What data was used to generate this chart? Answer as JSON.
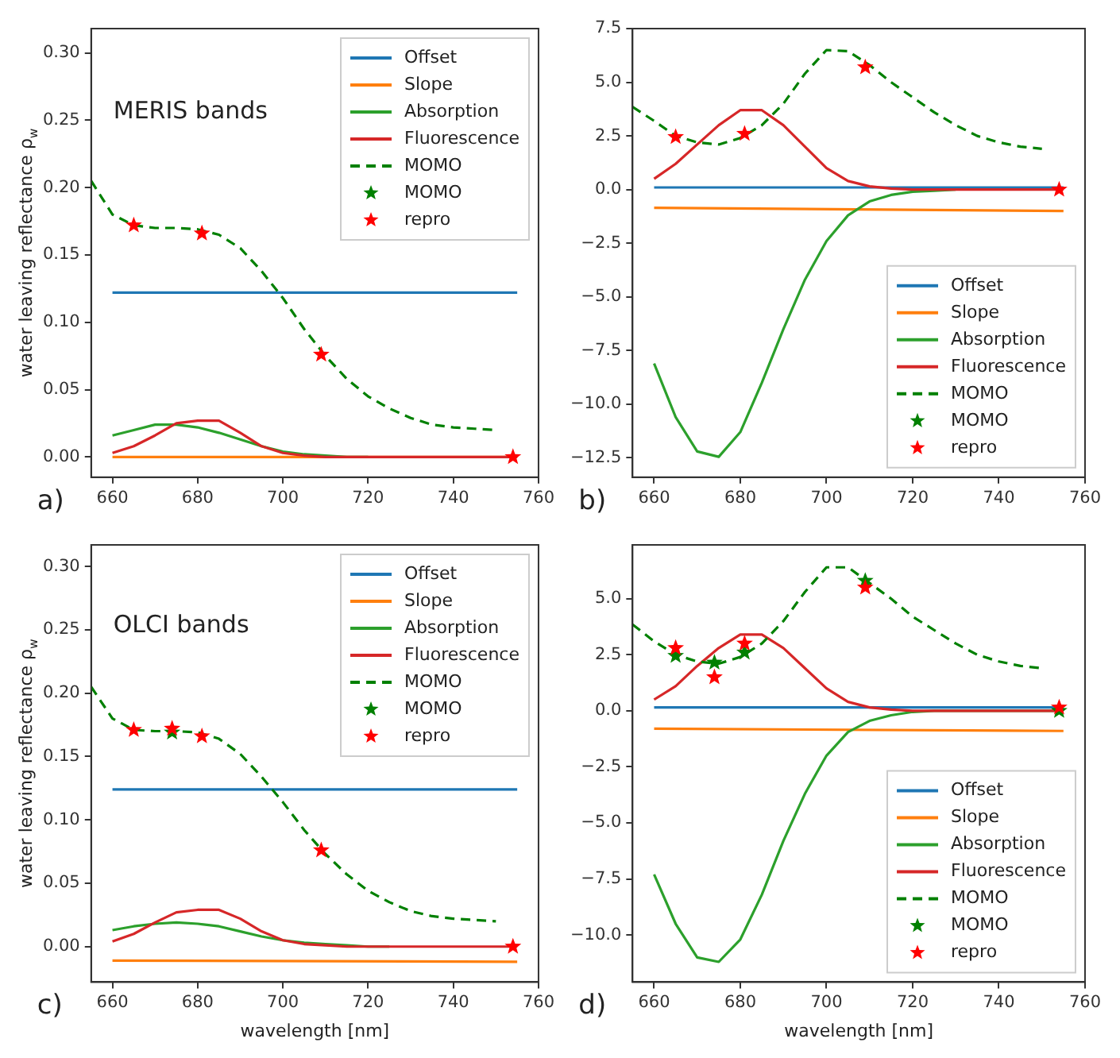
{
  "chart_data": [
    {
      "type": "line",
      "annotations": [
        "a)",
        "MERIS bands"
      ],
      "ylabel": "water leaving reflectance ρ$_{w}$",
      "xlim": [
        655,
        760
      ],
      "xticks": [
        660,
        680,
        700,
        720,
        740,
        760
      ],
      "ylim": [
        -0.015,
        0.318
      ],
      "yticks": [
        {
          "value": 0,
          "label": "0.00"
        },
        {
          "value": 0.05,
          "label": "0.05"
        },
        {
          "value": 0.1,
          "label": "0.10"
        },
        {
          "value": 0.15,
          "label": "0.15"
        },
        {
          "value": 0.2,
          "label": "0.20"
        },
        {
          "value": 0.25,
          "label": "0.25"
        },
        {
          "value": 0.3,
          "label": "0.30"
        }
      ],
      "legend": "top right",
      "series": [
        {
          "name": "Offset",
          "color": "#1f77b4",
          "x": [
            660,
            755
          ],
          "values": [
            0.122,
            0.122
          ]
        },
        {
          "name": "Slope",
          "color": "#ff7f0e",
          "x": [
            660,
            755
          ],
          "values": [
            0,
            0
          ]
        },
        {
          "name": "Absorption",
          "color": "#2ca02c",
          "x": [
            660,
            665,
            670,
            675,
            680,
            685,
            690,
            695,
            700,
            705,
            710,
            715,
            720
          ],
          "values": [
            0.016,
            0.02,
            0.024,
            0.024,
            0.022,
            0.018,
            0.013,
            0.008,
            0.004,
            0.002,
            0.001,
            0,
            0
          ]
        },
        {
          "name": "Fluorescence",
          "color": "#d62728",
          "x": [
            660,
            665,
            670,
            675,
            680,
            685,
            690,
            695,
            700,
            705,
            710,
            715,
            720,
            725,
            730,
            735,
            740,
            745,
            750,
            755
          ],
          "values": [
            0.003,
            0.008,
            0.016,
            0.025,
            0.027,
            0.027,
            0.018,
            0.008,
            0.003,
            0.001,
            0,
            0,
            0,
            0,
            0,
            0,
            0,
            0,
            0,
            0
          ]
        },
        {
          "name": "MOMO",
          "line_style": "dashed",
          "color": "#008000",
          "x": [
            655,
            660,
            665,
            670,
            675,
            680,
            685,
            690,
            695,
            700,
            705,
            710,
            715,
            720,
            725,
            730,
            735,
            740,
            745,
            750
          ],
          "values": [
            0.205,
            0.18,
            0.172,
            0.17,
            0.17,
            0.169,
            0.165,
            0.155,
            0.138,
            0.118,
            0.095,
            0.075,
            0.058,
            0.045,
            0.036,
            0.029,
            0.024,
            0.022,
            0.021,
            0.02
          ]
        },
        {
          "name": "MOMO",
          "type": "scatter",
          "marker": "star",
          "color": "#008000"
        },
        {
          "name": "repro",
          "type": "scatter",
          "marker": "star",
          "color": "#ff0000",
          "x": [
            665,
            681,
            709,
            754
          ],
          "values": [
            0.172,
            0.166,
            0.076,
            0
          ]
        }
      ]
    },
    {
      "type": "line",
      "annotations": [
        "b)"
      ],
      "xlim": [
        655,
        760
      ],
      "xticks": [
        660,
        680,
        700,
        720,
        740,
        760
      ],
      "ylim": [
        -13.4,
        7.5
      ],
      "yticks": [
        {
          "value": -12.5,
          "label": "−12.5"
        },
        {
          "value": -10,
          "label": "−10.0"
        },
        {
          "value": -7.5,
          "label": "−7.5"
        },
        {
          "value": -5,
          "label": "−5.0"
        },
        {
          "value": -2.5,
          "label": "−2.5"
        },
        {
          "value": 0,
          "label": "0.0"
        },
        {
          "value": 2.5,
          "label": "2.5"
        },
        {
          "value": 5,
          "label": "5.0"
        },
        {
          "value": 7.5,
          "label": "7.5"
        }
      ],
      "legend": "bottom right",
      "series": [
        {
          "name": "Offset",
          "color": "#1f77b4",
          "x": [
            660,
            755
          ],
          "values": [
            0.1,
            0.1
          ]
        },
        {
          "name": "Slope",
          "color": "#ff7f0e",
          "x": [
            660,
            755
          ],
          "values": [
            -0.85,
            -1.0
          ]
        },
        {
          "name": "Absorption",
          "color": "#2ca02c",
          "x": [
            660,
            665,
            670,
            675,
            680,
            685,
            690,
            695,
            700,
            705,
            710,
            715,
            720,
            725,
            730
          ],
          "values": [
            -8.1,
            -10.6,
            -12.2,
            -12.45,
            -11.3,
            -9.0,
            -6.5,
            -4.2,
            -2.4,
            -1.2,
            -0.55,
            -0.25,
            -0.1,
            -0.05,
            0
          ]
        },
        {
          "name": "Fluorescence",
          "color": "#d62728",
          "x": [
            660,
            665,
            670,
            675,
            680,
            685,
            690,
            695,
            700,
            705,
            710,
            715,
            720,
            725,
            730,
            735,
            740,
            745,
            750,
            755
          ],
          "values": [
            0.5,
            1.2,
            2.1,
            3.0,
            3.7,
            3.7,
            3.0,
            2.0,
            1.0,
            0.4,
            0.15,
            0.05,
            0,
            0,
            0,
            0,
            0,
            0,
            0,
            0
          ]
        },
        {
          "name": "MOMO",
          "line_style": "dashed",
          "color": "#008000",
          "x": [
            655,
            660,
            665,
            670,
            675,
            680,
            685,
            690,
            695,
            700,
            705,
            710,
            715,
            720,
            725,
            730,
            735,
            740,
            745,
            750
          ],
          "values": [
            3.85,
            3.2,
            2.5,
            2.2,
            2.1,
            2.4,
            3.0,
            4.0,
            5.4,
            6.5,
            6.45,
            5.8,
            5.0,
            4.3,
            3.6,
            3.0,
            2.5,
            2.2,
            2.0,
            1.9
          ]
        },
        {
          "name": "MOMO",
          "type": "scatter",
          "marker": "star",
          "color": "#008000"
        },
        {
          "name": "repro",
          "type": "scatter",
          "marker": "star",
          "color": "#ff0000",
          "x": [
            665,
            681,
            709,
            754
          ],
          "values": [
            2.45,
            2.6,
            5.7,
            0
          ]
        }
      ]
    },
    {
      "type": "line",
      "annotations": [
        "c)",
        "OLCI bands"
      ],
      "ylabel": "water leaving reflectance ρ$_{w}$",
      "xlabel": "wavelength [nm]",
      "xlim": [
        655,
        760
      ],
      "xticks": [
        660,
        680,
        700,
        720,
        740,
        760
      ],
      "ylim": [
        -0.028,
        0.317
      ],
      "yticks": [
        {
          "value": 0,
          "label": "0.00"
        },
        {
          "value": 0.05,
          "label": "0.05"
        },
        {
          "value": 0.1,
          "label": "0.10"
        },
        {
          "value": 0.15,
          "label": "0.15"
        },
        {
          "value": 0.2,
          "label": "0.20"
        },
        {
          "value": 0.25,
          "label": "0.25"
        },
        {
          "value": 0.3,
          "label": "0.30"
        }
      ],
      "legend": "top right",
      "series": [
        {
          "name": "Offset",
          "color": "#1f77b4",
          "x": [
            660,
            755
          ],
          "values": [
            0.124,
            0.124
          ]
        },
        {
          "name": "Slope",
          "color": "#ff7f0e",
          "x": [
            660,
            755
          ],
          "values": [
            -0.011,
            -0.012
          ]
        },
        {
          "name": "Absorption",
          "color": "#2ca02c",
          "x": [
            660,
            665,
            670,
            675,
            680,
            685,
            690,
            695,
            700,
            705,
            710,
            715,
            720,
            725
          ],
          "values": [
            0.013,
            0.016,
            0.018,
            0.019,
            0.018,
            0.016,
            0.012,
            0.008,
            0.005,
            0.003,
            0.002,
            0.001,
            0,
            0
          ]
        },
        {
          "name": "Fluorescence",
          "color": "#d62728",
          "x": [
            660,
            665,
            670,
            675,
            680,
            685,
            690,
            695,
            700,
            705,
            710,
            715,
            720,
            725,
            730,
            735,
            740,
            745,
            750,
            755
          ],
          "values": [
            0.004,
            0.01,
            0.019,
            0.027,
            0.029,
            0.029,
            0.022,
            0.012,
            0.005,
            0.002,
            0.001,
            0,
            0,
            0,
            0,
            0,
            0,
            0,
            0,
            0
          ]
        },
        {
          "name": "MOMO",
          "line_style": "dashed",
          "color": "#008000",
          "x": [
            655,
            660,
            665,
            670,
            675,
            680,
            685,
            690,
            695,
            700,
            705,
            710,
            715,
            720,
            725,
            730,
            735,
            740,
            745,
            750
          ],
          "values": [
            0.205,
            0.18,
            0.171,
            0.17,
            0.17,
            0.169,
            0.164,
            0.152,
            0.134,
            0.114,
            0.092,
            0.073,
            0.057,
            0.044,
            0.035,
            0.028,
            0.024,
            0.022,
            0.021,
            0.02
          ]
        },
        {
          "name": "MOMO",
          "type": "scatter",
          "marker": "star",
          "color": "#008000",
          "x": [
            674
          ],
          "values": [
            0.169
          ]
        },
        {
          "name": "repro",
          "type": "scatter",
          "marker": "star",
          "color": "#ff0000",
          "x": [
            665,
            674,
            681,
            709,
            754
          ],
          "values": [
            0.171,
            0.172,
            0.166,
            0.076,
            0
          ]
        }
      ]
    },
    {
      "type": "line",
      "annotations": [
        "d)"
      ],
      "xlabel": "wavelength [nm]",
      "xlim": [
        655,
        760
      ],
      "xticks": [
        660,
        680,
        700,
        720,
        740,
        760
      ],
      "ylim": [
        -12.1,
        7.4
      ],
      "yticks": [
        {
          "value": -10,
          "label": "−10.0"
        },
        {
          "value": -7.5,
          "label": "−7.5"
        },
        {
          "value": -5,
          "label": "−5.0"
        },
        {
          "value": -2.5,
          "label": "−2.5"
        },
        {
          "value": 0,
          "label": "0.0"
        },
        {
          "value": 2.5,
          "label": "2.5"
        },
        {
          "value": 5,
          "label": "5.0"
        }
      ],
      "legend": "bottom right",
      "series": [
        {
          "name": "Offset",
          "color": "#1f77b4",
          "x": [
            660,
            755
          ],
          "values": [
            0.15,
            0.15
          ]
        },
        {
          "name": "Slope",
          "color": "#ff7f0e",
          "x": [
            660,
            755
          ],
          "values": [
            -0.8,
            -0.9
          ]
        },
        {
          "name": "Absorption",
          "color": "#2ca02c",
          "x": [
            660,
            665,
            670,
            675,
            680,
            685,
            690,
            695,
            700,
            705,
            710,
            715,
            720,
            725,
            730,
            735,
            740,
            745,
            750,
            755
          ],
          "values": [
            -7.3,
            -9.5,
            -11.0,
            -11.2,
            -10.2,
            -8.2,
            -5.8,
            -3.7,
            -2.0,
            -0.95,
            -0.45,
            -0.2,
            -0.05,
            0,
            0,
            0,
            0,
            0,
            0,
            0
          ]
        },
        {
          "name": "Fluorescence",
          "color": "#d62728",
          "x": [
            660,
            665,
            670,
            675,
            680,
            685,
            690,
            695,
            700,
            705,
            710,
            715,
            720,
            725,
            730,
            735,
            740,
            745,
            750,
            755
          ],
          "values": [
            0.5,
            1.1,
            2.0,
            2.8,
            3.4,
            3.4,
            2.8,
            1.9,
            1.0,
            0.4,
            0.15,
            0.05,
            0,
            0,
            0,
            0,
            0,
            0,
            0,
            0
          ]
        },
        {
          "name": "MOMO",
          "line_style": "dashed",
          "color": "#008000",
          "x": [
            655,
            660,
            665,
            670,
            675,
            680,
            685,
            690,
            695,
            700,
            705,
            710,
            715,
            720,
            725,
            730,
            735,
            740,
            745,
            750
          ],
          "values": [
            3.85,
            3.1,
            2.5,
            2.2,
            2.1,
            2.4,
            3.0,
            4.0,
            5.3,
            6.4,
            6.4,
            5.7,
            5.0,
            4.2,
            3.6,
            3.0,
            2.5,
            2.2,
            2.0,
            1.9
          ]
        },
        {
          "name": "MOMO",
          "type": "scatter",
          "marker": "star",
          "color": "#008000",
          "x": [
            665,
            674,
            681,
            709,
            754
          ],
          "values": [
            2.45,
            2.15,
            2.6,
            5.8,
            0
          ]
        },
        {
          "name": "repro",
          "type": "scatter",
          "marker": "star",
          "color": "#ff0000",
          "x": [
            665,
            674,
            681,
            709,
            754
          ],
          "values": [
            2.8,
            1.5,
            3.0,
            5.5,
            0.15
          ]
        }
      ]
    }
  ]
}
